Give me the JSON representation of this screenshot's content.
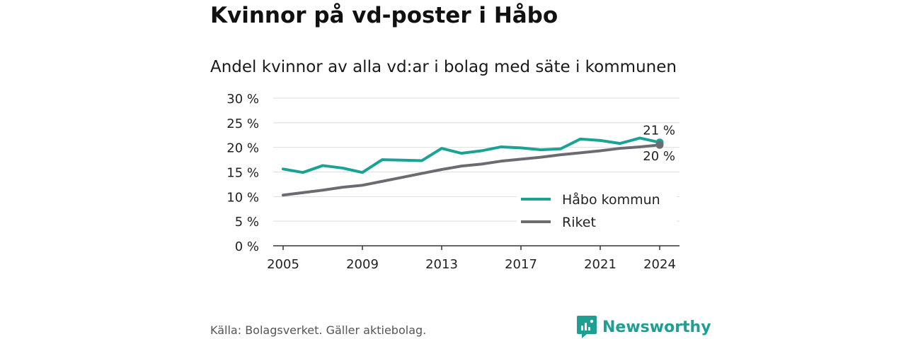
{
  "title": "Kvinnor på vd-poster i Håbo",
  "subtitle": "Andel kvinnor av alla vd:ar i bolag med säte i kommunen",
  "source": "Källa: Bolagsverket. Gäller aktiebolag.",
  "brand": {
    "name": "Newsworthy",
    "icon": "newsworthy-logo-icon",
    "color": "#1f9e92"
  },
  "chart_data": {
    "type": "line",
    "title": "",
    "xlabel": "",
    "ylabel": "",
    "x": [
      2005,
      2006,
      2007,
      2008,
      2009,
      2010,
      2011,
      2012,
      2013,
      2014,
      2015,
      2016,
      2017,
      2018,
      2019,
      2020,
      2021,
      2022,
      2023,
      2024
    ],
    "xticks": [
      2005,
      2009,
      2013,
      2017,
      2021,
      2024
    ],
    "xtick_labels": [
      "2005",
      "2009",
      "2013",
      "2017",
      "2021",
      "2024"
    ],
    "ylim": [
      0,
      30
    ],
    "yticks": [
      0,
      5,
      10,
      15,
      20,
      25,
      30
    ],
    "ytick_labels": [
      "0 %",
      "5 %",
      "10 %",
      "15 %",
      "20 %",
      "25 %",
      "30 %"
    ],
    "grid": "horizontal",
    "legend_position": "bottom-right",
    "series": [
      {
        "name": "Håbo kommun",
        "color": "#1aa394",
        "values": [
          15.6,
          14.9,
          16.3,
          15.8,
          14.9,
          17.5,
          17.4,
          17.3,
          19.8,
          18.8,
          19.3,
          20.1,
          19.9,
          19.5,
          19.7,
          21.7,
          21.4,
          20.8,
          21.9,
          21.0
        ],
        "end_label": "21 %"
      },
      {
        "name": "Riket",
        "color": "#6d6b72",
        "values": [
          10.3,
          10.8,
          11.3,
          11.9,
          12.3,
          13.1,
          13.9,
          14.7,
          15.5,
          16.2,
          16.6,
          17.2,
          17.6,
          18.0,
          18.5,
          18.9,
          19.3,
          19.8,
          20.1,
          20.5
        ],
        "end_label": "20 %"
      }
    ]
  }
}
